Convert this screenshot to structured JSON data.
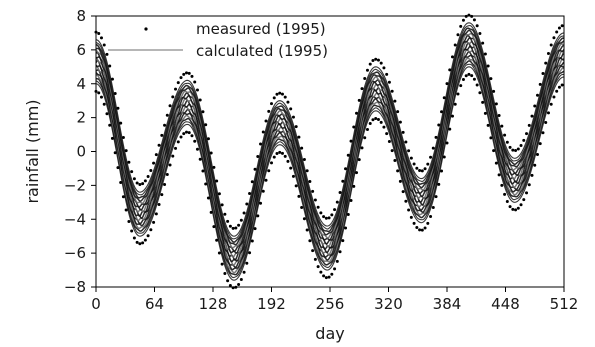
{
  "chart_data": {
    "type": "line",
    "title": "",
    "xlabel": "day",
    "ylabel": "rainfall (mm)",
    "xlim": [
      0,
      512
    ],
    "ylim": [
      -8,
      8
    ],
    "xticks": [
      0,
      64,
      128,
      192,
      256,
      320,
      384,
      448,
      512
    ],
    "yticks": [
      -8,
      -6,
      -4,
      -2,
      0,
      2,
      4,
      6,
      8
    ],
    "grid": false,
    "legend": {
      "position": "top-center",
      "frame": false
    },
    "extrema": [
      {
        "day": 0,
        "center": 5.3,
        "spread": 1.3
      },
      {
        "day": 48,
        "center": -3.7,
        "spread": 1.3
      },
      {
        "day": 100,
        "center": 2.9,
        "spread": 1.3
      },
      {
        "day": 151,
        "center": -6.3,
        "spread": 1.3
      },
      {
        "day": 201,
        "center": 1.7,
        "spread": 1.3
      },
      {
        "day": 253,
        "center": -5.7,
        "spread": 1.3
      },
      {
        "day": 306,
        "center": 3.7,
        "spread": 1.3
      },
      {
        "day": 356,
        "center": -2.9,
        "spread": 1.3
      },
      {
        "day": 408,
        "center": 6.3,
        "spread": 1.3
      },
      {
        "day": 458,
        "center": -1.7,
        "spread": 1.3
      },
      {
        "day": 512,
        "center": 5.7,
        "spread": 1.3
      }
    ],
    "series": [
      {
        "name": "measured (1995)",
        "style": "dots",
        "color": "#000000"
      },
      {
        "name": "calculated (1995)",
        "style": "line",
        "color": "#8a8a8a",
        "bundle_color": "#111111"
      }
    ]
  }
}
